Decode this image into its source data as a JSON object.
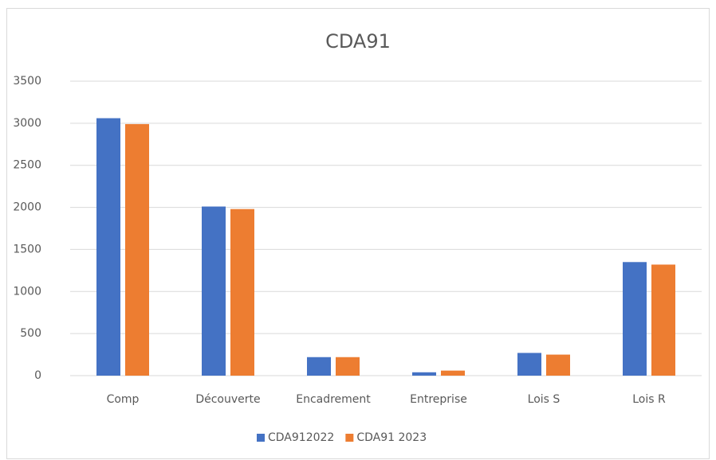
{
  "chart_data": {
    "type": "bar",
    "title": "CDA91",
    "categories": [
      "Comp",
      "Découverte",
      "Encadrement",
      "Entreprise",
      "Lois S",
      "Lois R"
    ],
    "series": [
      {
        "name": "CDA912022",
        "color": "#4472c4",
        "values": [
          3060,
          2010,
          220,
          40,
          270,
          1350
        ]
      },
      {
        "name": "CDA91 2023",
        "color": "#ed7d31",
        "values": [
          2990,
          1980,
          220,
          60,
          250,
          1320
        ]
      }
    ],
    "ylim": [
      0,
      3500
    ],
    "yticks": [
      0,
      500,
      1000,
      1500,
      2000,
      2500,
      3000,
      3500
    ],
    "grid": true,
    "legend": "bottom"
  }
}
